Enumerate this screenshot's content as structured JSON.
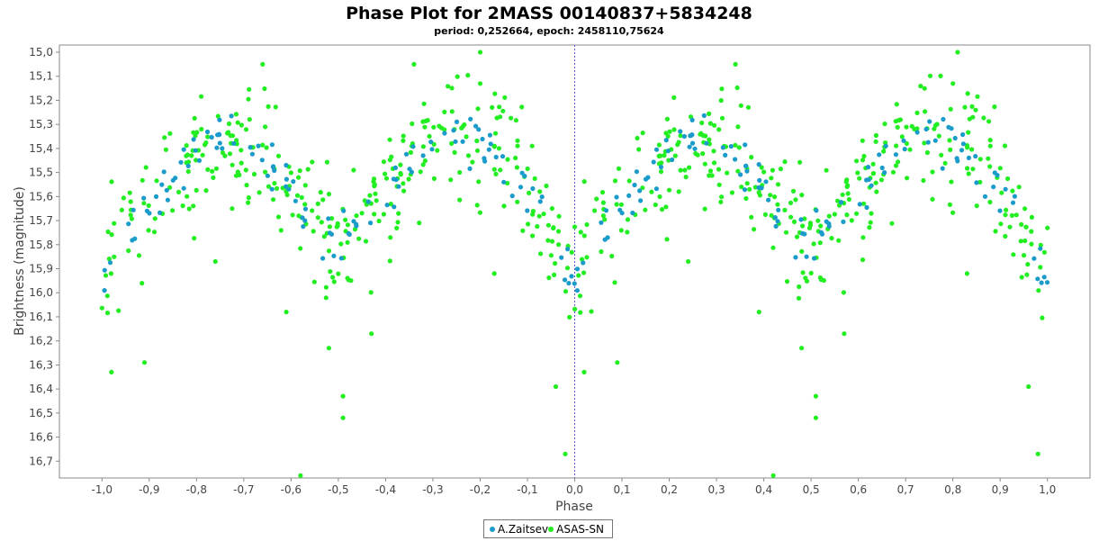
{
  "chart_data": {
    "type": "scatter",
    "title": "Phase Plot for 2MASS 00140837+5834248",
    "subtitle": "period: 0,252664, epoch: 2458110,75624",
    "xlabel": "Phase",
    "ylabel": "Brightness (magnitude)",
    "xlim": [
      -1.09,
      1.09
    ],
    "ylim": [
      16.77,
      14.97
    ],
    "y_inverted": true,
    "xticks": [
      "-1,0",
      "-0,9",
      "-0,8",
      "-0,7",
      "-0,6",
      "-0,5",
      "-0,4",
      "-0,3",
      "-0,2",
      "-0,1",
      "0,0",
      "0,1",
      "0,2",
      "0,3",
      "0,4",
      "0,5",
      "0,6",
      "0,7",
      "0,8",
      "0,9",
      "1,0"
    ],
    "yticks": [
      "15,0",
      "15,1",
      "15,2",
      "15,3",
      "15,4",
      "15,5",
      "15,6",
      "15,7",
      "15,8",
      "15,9",
      "16,0",
      "16,1",
      "16,2",
      "16,3",
      "16,4",
      "16,5",
      "16,6",
      "16,7"
    ],
    "grid": false,
    "zero_line": {
      "x": 0.0,
      "style": "dashed",
      "color": "#5a5ad6"
    },
    "legend_position": "bottom-center",
    "series": [
      {
        "name": "A.Zaitsev",
        "color": "#1a9bc9",
        "light_curve": {
          "phase_mag": [
            [
              0.0,
              15.95
            ],
            [
              0.02,
              15.87
            ],
            [
              0.04,
              15.79
            ],
            [
              0.06,
              15.73
            ],
            [
              0.08,
              15.68
            ],
            [
              0.1,
              15.63
            ],
            [
              0.12,
              15.58
            ],
            [
              0.14,
              15.54
            ],
            [
              0.16,
              15.5
            ],
            [
              0.18,
              15.46
            ],
            [
              0.2,
              15.42
            ],
            [
              0.22,
              15.39
            ],
            [
              0.24,
              15.37
            ],
            [
              0.26,
              15.35
            ],
            [
              0.28,
              15.36
            ],
            [
              0.3,
              15.38
            ],
            [
              0.32,
              15.41
            ],
            [
              0.34,
              15.45
            ],
            [
              0.36,
              15.49
            ],
            [
              0.38,
              15.54
            ],
            [
              0.4,
              15.59
            ],
            [
              0.42,
              15.64
            ],
            [
              0.44,
              15.69
            ],
            [
              0.46,
              15.74
            ],
            [
              0.48,
              15.79
            ],
            [
              0.5,
              15.83
            ],
            [
              0.52,
              15.8
            ],
            [
              0.54,
              15.75
            ],
            [
              0.56,
              15.69
            ],
            [
              0.58,
              15.63
            ],
            [
              0.6,
              15.58
            ],
            [
              0.62,
              15.53
            ],
            [
              0.64,
              15.48
            ],
            [
              0.66,
              15.44
            ],
            [
              0.68,
              15.4
            ],
            [
              0.7,
              15.37
            ],
            [
              0.72,
              15.34
            ],
            [
              0.74,
              15.32
            ],
            [
              0.76,
              15.33
            ],
            [
              0.78,
              15.35
            ],
            [
              0.8,
              15.38
            ],
            [
              0.82,
              15.41
            ],
            [
              0.84,
              15.45
            ],
            [
              0.86,
              15.5
            ],
            [
              0.88,
              15.55
            ],
            [
              0.9,
              15.61
            ],
            [
              0.92,
              15.67
            ],
            [
              0.94,
              15.74
            ],
            [
              0.96,
              15.81
            ],
            [
              0.98,
              15.88
            ],
            [
              1.0,
              15.95
            ]
          ],
          "scatter_mag": 0.05,
          "points_per_cycle": 115,
          "cycles_shown": [
            -1.0,
            1.0
          ]
        }
      },
      {
        "name": "ASAS-SN",
        "color": "#22ee22",
        "light_curve": {
          "phase_mag": [
            [
              0.0,
              15.95
            ],
            [
              0.02,
              15.87
            ],
            [
              0.04,
              15.79
            ],
            [
              0.06,
              15.73
            ],
            [
              0.08,
              15.68
            ],
            [
              0.1,
              15.63
            ],
            [
              0.12,
              15.58
            ],
            [
              0.14,
              15.54
            ],
            [
              0.16,
              15.5
            ],
            [
              0.18,
              15.46
            ],
            [
              0.2,
              15.42
            ],
            [
              0.22,
              15.39
            ],
            [
              0.24,
              15.37
            ],
            [
              0.26,
              15.35
            ],
            [
              0.28,
              15.36
            ],
            [
              0.3,
              15.38
            ],
            [
              0.32,
              15.41
            ],
            [
              0.34,
              15.45
            ],
            [
              0.36,
              15.49
            ],
            [
              0.38,
              15.54
            ],
            [
              0.4,
              15.59
            ],
            [
              0.42,
              15.64
            ],
            [
              0.44,
              15.69
            ],
            [
              0.46,
              15.74
            ],
            [
              0.48,
              15.79
            ],
            [
              0.5,
              15.83
            ],
            [
              0.52,
              15.8
            ],
            [
              0.54,
              15.75
            ],
            [
              0.56,
              15.69
            ],
            [
              0.58,
              15.63
            ],
            [
              0.6,
              15.58
            ],
            [
              0.62,
              15.53
            ],
            [
              0.64,
              15.48
            ],
            [
              0.66,
              15.44
            ],
            [
              0.68,
              15.4
            ],
            [
              0.7,
              15.37
            ],
            [
              0.72,
              15.34
            ],
            [
              0.74,
              15.32
            ],
            [
              0.76,
              15.33
            ],
            [
              0.78,
              15.35
            ],
            [
              0.8,
              15.38
            ],
            [
              0.82,
              15.41
            ],
            [
              0.84,
              15.45
            ],
            [
              0.86,
              15.5
            ],
            [
              0.88,
              15.55
            ],
            [
              0.9,
              15.61
            ],
            [
              0.92,
              15.67
            ],
            [
              0.94,
              15.74
            ],
            [
              0.96,
              15.81
            ],
            [
              0.98,
              15.88
            ],
            [
              1.0,
              15.95
            ]
          ],
          "scatter_mag": 0.12,
          "points_per_cycle": 320,
          "cycles_shown": [
            -1.0,
            1.0
          ]
        },
        "outliers": [
          [
            0.77,
            14.96
          ],
          [
            0.81,
            15.0
          ],
          [
            0.8,
            15.13
          ],
          [
            -0.23,
            14.96
          ],
          [
            -0.2,
            15.0
          ],
          [
            -0.2,
            15.13
          ],
          [
            -0.34,
            15.05
          ],
          [
            0.34,
            15.05
          ],
          [
            -0.66,
            15.05
          ],
          [
            -0.58,
            16.76
          ],
          [
            0.42,
            16.76
          ],
          [
            -0.02,
            16.67
          ],
          [
            0.98,
            16.67
          ],
          [
            -0.49,
            16.43
          ],
          [
            -0.49,
            16.52
          ],
          [
            0.51,
            16.43
          ],
          [
            0.51,
            16.52
          ],
          [
            -0.98,
            16.33
          ],
          [
            0.02,
            16.33
          ],
          [
            -0.91,
            16.29
          ],
          [
            0.09,
            16.29
          ],
          [
            -0.52,
            16.23
          ],
          [
            0.48,
            16.23
          ],
          [
            -0.04,
            16.39
          ],
          [
            0.96,
            16.39
          ],
          [
            -0.43,
            16.17
          ],
          [
            0.57,
            16.17
          ],
          [
            -0.61,
            16.08
          ],
          [
            0.39,
            16.08
          ],
          [
            -0.76,
            15.87
          ],
          [
            0.24,
            15.87
          ],
          [
            -0.17,
            15.92
          ],
          [
            0.83,
            15.92
          ],
          [
            -0.39,
            15.77
          ],
          [
            0.61,
            15.77
          ]
        ]
      }
    ]
  },
  "legend": {
    "items": [
      {
        "label": "A.Zaitsev",
        "color": "#1a9bc9"
      },
      {
        "label": "ASAS-SN",
        "color": "#22ee22"
      }
    ]
  }
}
